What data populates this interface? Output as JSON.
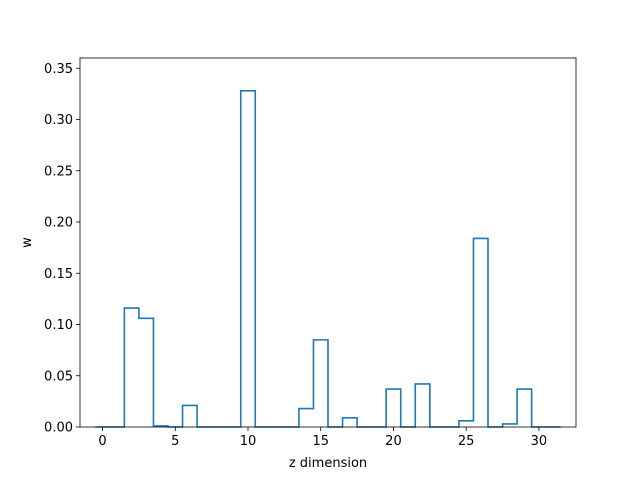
{
  "chart_data": {
    "type": "step",
    "title": "",
    "xlabel": "z dimension",
    "ylabel": "w",
    "xlim": [
      -1.55,
      32.55
    ],
    "ylim": [
      0.0,
      0.36
    ],
    "xticks": [
      0,
      5,
      10,
      15,
      20,
      25,
      30
    ],
    "yticks": [
      0.0,
      0.05,
      0.1,
      0.15,
      0.2,
      0.25,
      0.3,
      0.35
    ],
    "grid": false,
    "legend": "none",
    "series": [
      {
        "x": [
          0,
          1,
          2,
          3,
          4,
          5,
          6,
          7,
          8,
          9,
          10,
          11,
          12,
          13,
          14,
          15,
          16,
          17,
          18,
          19,
          20,
          21,
          22,
          23,
          24,
          25,
          26,
          27,
          28,
          29,
          30,
          31
        ],
        "values": [
          0.0,
          0.0,
          0.116,
          0.106,
          0.001,
          0.0,
          0.021,
          0.0,
          0.0,
          0.0,
          0.328,
          0.0,
          0.0,
          0.0,
          0.018,
          0.085,
          0.0,
          0.009,
          0.0,
          0.0,
          0.037,
          0.0,
          0.042,
          0.0,
          0.0,
          0.006,
          0.184,
          0.0,
          0.003,
          0.037,
          0.0,
          0.0
        ],
        "color": "#1f77b4"
      }
    ]
  }
}
